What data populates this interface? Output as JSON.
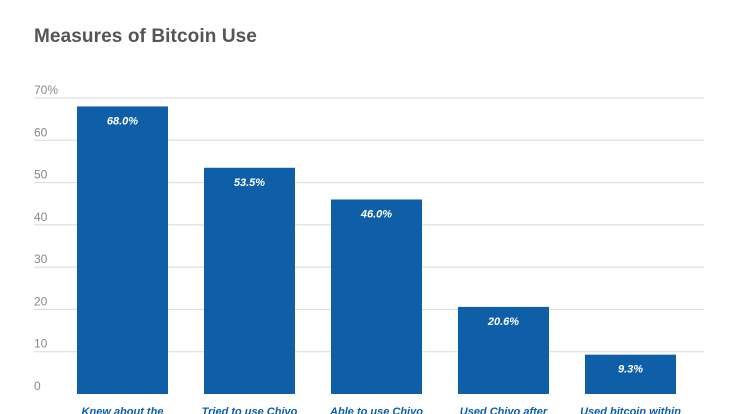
{
  "chart_data": {
    "type": "bar",
    "title": "Measures of Bitcoin Use",
    "xlabel": "",
    "ylabel": "",
    "ylim": [
      0,
      70
    ],
    "yticks": [
      "0",
      "10",
      "20",
      "30",
      "40",
      "50",
      "60",
      "70%"
    ],
    "categories": [
      "Knew about the",
      "Tried to use Chivo",
      "Able to use Chivo",
      "Used Chivo after",
      "Used bitcoin within"
    ],
    "values": [
      68.0,
      53.5,
      46.0,
      20.6,
      9.3
    ],
    "data_labels": [
      "68.0%",
      "53.5%",
      "46.0%",
      "20.6%",
      "9.3%"
    ],
    "grid": true,
    "colors": {
      "bar": "#0f5fa8",
      "grid": "#d8d8d8",
      "title": "#555555"
    }
  }
}
